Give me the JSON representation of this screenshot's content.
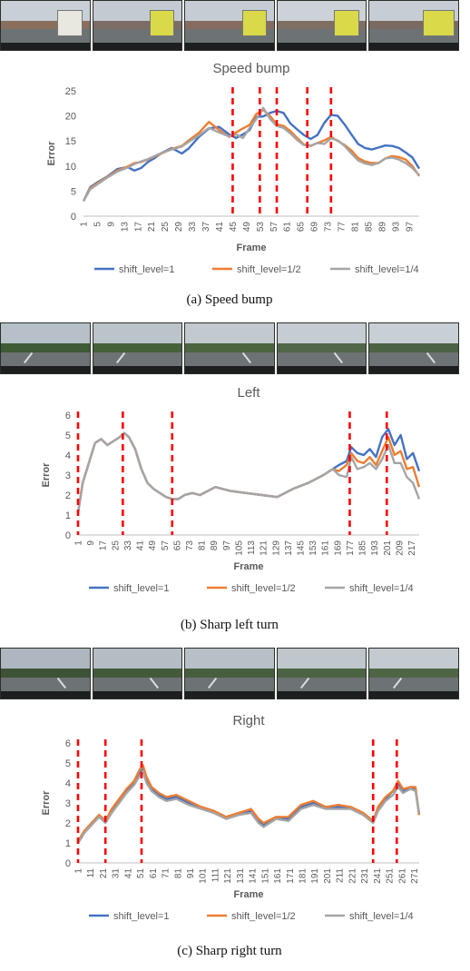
{
  "panels": [
    {
      "caption": "(a) Speed bump",
      "hud": [
        "",
        "",
        "",
        "",
        ""
      ]
    },
    {
      "caption": "(b) Sharp left turn",
      "hud": [
        "",
        "",
        "",
        "",
        ""
      ]
    },
    {
      "caption": "(c) Sharp right turn",
      "hud": [
        "",
        "",
        "",
        "",
        ""
      ]
    }
  ],
  "colors": {
    "shift_1": "#4472c4",
    "shift_half": "#ed7d31",
    "shift_quarter": "#a5a5a5",
    "marker": "#ff0000"
  },
  "chart_data": [
    {
      "type": "line",
      "title": "Speed bump",
      "xlabel": "Frame",
      "ylabel": "Error",
      "ylim": [
        0,
        25
      ],
      "yticks": [
        0,
        5,
        10,
        15,
        20,
        25
      ],
      "xlim": [
        1,
        100
      ],
      "xticks": [
        1,
        5,
        9,
        13,
        17,
        21,
        25,
        29,
        33,
        37,
        41,
        45,
        49,
        53,
        57,
        61,
        65,
        69,
        73,
        77,
        81,
        85,
        89,
        93,
        97
      ],
      "markers": [
        45,
        53,
        58,
        67,
        74
      ],
      "legend_position": "bottom",
      "series": [
        {
          "name": "shift_level=1",
          "x": [
            1,
            3,
            5,
            8,
            11,
            14,
            16,
            18,
            20,
            22,
            24,
            27,
            30,
            32,
            35,
            38,
            41,
            44,
            46,
            48,
            50,
            52,
            54,
            56,
            58,
            60,
            62,
            64,
            66,
            68,
            70,
            72,
            74,
            76,
            78,
            80,
            82,
            84,
            86,
            88,
            90,
            92,
            94,
            96,
            98,
            100
          ],
          "values": [
            3,
            5.8,
            6.7,
            7.9,
            9.4,
            9.8,
            9.1,
            9.6,
            10.8,
            11.6,
            12.6,
            13.6,
            12.5,
            13.5,
            15.8,
            17.5,
            17.8,
            16.3,
            15.6,
            16.3,
            17.2,
            19.8,
            19.9,
            20.6,
            21.0,
            20.6,
            18.5,
            17.3,
            16.2,
            15.4,
            16.2,
            18.6,
            20.2,
            20.0,
            18.3,
            16.3,
            14.4,
            13.6,
            13.3,
            13.7,
            14.1,
            14.0,
            13.6,
            12.7,
            11.7,
            9.5
          ]
        },
        {
          "name": "shift_level=1/2",
          "x": [
            1,
            3,
            5,
            8,
            11,
            14,
            16,
            18,
            20,
            22,
            24,
            27,
            30,
            32,
            35,
            38,
            41,
            44,
            46,
            48,
            50,
            52,
            54,
            56,
            58,
            60,
            62,
            64,
            66,
            68,
            70,
            72,
            74,
            76,
            78,
            80,
            82,
            84,
            86,
            88,
            90,
            92,
            94,
            96,
            98,
            100
          ],
          "values": [
            3,
            5.6,
            6.5,
            7.8,
            9.1,
            9.9,
            10.6,
            10.8,
            11.3,
            11.9,
            12.5,
            13.4,
            14.0,
            15.1,
            16.6,
            18.8,
            17.2,
            15.8,
            16.7,
            17.5,
            18.2,
            20.4,
            21.2,
            20.0,
            18.3,
            18.0,
            17.0,
            15.6,
            14.3,
            14.0,
            14.6,
            15.1,
            15.8,
            15.0,
            14.2,
            13.1,
            11.6,
            10.9,
            10.6,
            10.6,
            11.5,
            12.0,
            11.8,
            11.3,
            10.0,
            8.0
          ]
        },
        {
          "name": "shift_level=1/4",
          "x": [
            1,
            3,
            5,
            8,
            11,
            14,
            16,
            18,
            20,
            22,
            24,
            27,
            30,
            32,
            35,
            38,
            41,
            44,
            46,
            48,
            50,
            52,
            54,
            56,
            58,
            60,
            62,
            64,
            66,
            68,
            70,
            72,
            74,
            76,
            78,
            80,
            82,
            84,
            86,
            88,
            90,
            92,
            94,
            96,
            98,
            100
          ],
          "values": [
            3,
            5.4,
            6.3,
            7.7,
            8.9,
            9.7,
            10.4,
            10.9,
            11.4,
            12.0,
            12.6,
            13.3,
            13.9,
            14.8,
            16.1,
            17.6,
            16.7,
            15.9,
            16.3,
            15.6,
            17.6,
            19.4,
            21.6,
            19.4,
            18.0,
            17.6,
            16.5,
            15.2,
            14.2,
            14.1,
            14.6,
            14.4,
            15.5,
            15.1,
            14.0,
            12.5,
            11.1,
            10.5,
            10.2,
            10.6,
            11.5,
            11.7,
            11.3,
            10.6,
            9.6,
            8.2
          ]
        }
      ]
    },
    {
      "type": "line",
      "title": "Left",
      "xlabel": "Frame",
      "ylabel": "Error",
      "ylim": [
        0,
        6
      ],
      "yticks": [
        0,
        1,
        2,
        3,
        4,
        5,
        6
      ],
      "xlim": [
        1,
        222
      ],
      "xticks": [
        1,
        9,
        17,
        25,
        33,
        41,
        49,
        57,
        65,
        73,
        81,
        89,
        97,
        105,
        113,
        121,
        129,
        137,
        145,
        153,
        161,
        169,
        177,
        185,
        193,
        201,
        209,
        217
      ],
      "markers": [
        1,
        30,
        62,
        177,
        201
      ],
      "legend_position": "bottom",
      "series": [
        {
          "name": "shift_level=1",
          "x": [
            1,
            4,
            8,
            12,
            16,
            20,
            24,
            28,
            31,
            34,
            38,
            42,
            46,
            50,
            54,
            58,
            62,
            66,
            70,
            75,
            80,
            90,
            100,
            110,
            120,
            130,
            140,
            150,
            160,
            166,
            170,
            175,
            178,
            182,
            186,
            190,
            194,
            198,
            202,
            206,
            210,
            214,
            218,
            222
          ],
          "values": [
            1.1,
            2.6,
            3.6,
            4.6,
            4.8,
            4.5,
            4.7,
            4.9,
            5.1,
            4.9,
            4.3,
            3.3,
            2.6,
            2.3,
            2.1,
            1.9,
            1.8,
            1.8,
            2.0,
            2.1,
            2.0,
            2.4,
            2.2,
            2.1,
            2.0,
            1.9,
            2.3,
            2.6,
            3.0,
            3.3,
            3.5,
            3.7,
            4.4,
            4.1,
            4.0,
            4.3,
            3.9,
            4.9,
            5.3,
            4.5,
            5.0,
            3.8,
            4.1,
            3.2
          ]
        },
        {
          "name": "shift_level=1/2",
          "x": [
            1,
            4,
            8,
            12,
            16,
            20,
            24,
            28,
            31,
            34,
            38,
            42,
            46,
            50,
            54,
            58,
            62,
            66,
            70,
            75,
            80,
            90,
            100,
            110,
            120,
            130,
            140,
            150,
            160,
            166,
            170,
            175,
            178,
            182,
            186,
            190,
            194,
            198,
            202,
            206,
            210,
            214,
            218,
            222
          ],
          "values": [
            1.1,
            2.6,
            3.6,
            4.6,
            4.8,
            4.5,
            4.7,
            4.9,
            5.1,
            4.9,
            4.3,
            3.3,
            2.6,
            2.3,
            2.1,
            1.9,
            1.8,
            1.8,
            2.0,
            2.1,
            2.0,
            2.4,
            2.2,
            2.1,
            2.0,
            1.9,
            2.3,
            2.6,
            3.0,
            3.3,
            3.2,
            3.5,
            4.1,
            3.7,
            3.6,
            3.9,
            3.5,
            4.2,
            4.9,
            4.0,
            4.2,
            3.3,
            3.4,
            2.4
          ]
        },
        {
          "name": "shift_level=1/4",
          "x": [
            1,
            4,
            8,
            12,
            16,
            20,
            24,
            28,
            31,
            34,
            38,
            42,
            46,
            50,
            54,
            58,
            62,
            66,
            70,
            75,
            80,
            90,
            100,
            110,
            120,
            130,
            140,
            150,
            160,
            166,
            170,
            175,
            178,
            182,
            186,
            190,
            194,
            198,
            202,
            206,
            210,
            214,
            218,
            222
          ],
          "values": [
            1.1,
            2.6,
            3.6,
            4.6,
            4.8,
            4.5,
            4.7,
            4.9,
            5.1,
            4.9,
            4.3,
            3.3,
            2.6,
            2.3,
            2.1,
            1.9,
            1.8,
            1.8,
            2.0,
            2.1,
            2.0,
            2.4,
            2.2,
            2.1,
            2.0,
            1.9,
            2.3,
            2.6,
            3.0,
            3.3,
            3.0,
            2.9,
            3.9,
            3.3,
            3.4,
            3.6,
            3.3,
            3.8,
            4.5,
            3.6,
            3.6,
            2.9,
            2.6,
            1.8
          ]
        }
      ]
    },
    {
      "type": "line",
      "title": "Right",
      "xlabel": "Frame",
      "ylabel": "Error",
      "ylim": [
        0,
        6
      ],
      "yticks": [
        0,
        1,
        2,
        3,
        4,
        5,
        6
      ],
      "xlim": [
        1,
        275
      ],
      "xticks": [
        1,
        11,
        21,
        31,
        41,
        51,
        61,
        71,
        81,
        91,
        101,
        111,
        121,
        131,
        141,
        151,
        161,
        171,
        181,
        191,
        201,
        211,
        221,
        231,
        241,
        251,
        261,
        271
      ],
      "markers": [
        1,
        23,
        52,
        238,
        257
      ],
      "legend_position": "bottom",
      "series": [
        {
          "name": "shift_level=1",
          "x": [
            1,
            6,
            12,
            18,
            23,
            28,
            34,
            40,
            46,
            50,
            53,
            56,
            60,
            66,
            72,
            80,
            90,
            100,
            110,
            120,
            130,
            140,
            146,
            150,
            160,
            170,
            180,
            190,
            200,
            210,
            220,
            230,
            238,
            242,
            248,
            254,
            258,
            262,
            268,
            272,
            275
          ],
          "values": [
            1.0,
            1.5,
            2.0,
            2.4,
            2.1,
            2.6,
            3.1,
            3.6,
            4.0,
            4.5,
            4.7,
            4.1,
            3.7,
            3.4,
            3.2,
            3.3,
            3.0,
            2.8,
            2.6,
            2.3,
            2.5,
            2.6,
            2.1,
            1.9,
            2.3,
            2.2,
            2.8,
            3.0,
            2.8,
            2.8,
            2.8,
            2.5,
            2.1,
            2.7,
            3.2,
            3.6,
            4.0,
            3.6,
            3.8,
            3.7,
            2.4
          ]
        },
        {
          "name": "shift_level=1/2",
          "x": [
            1,
            6,
            12,
            18,
            23,
            28,
            34,
            40,
            46,
            50,
            53,
            56,
            60,
            66,
            72,
            80,
            90,
            100,
            110,
            120,
            130,
            140,
            146,
            150,
            160,
            170,
            180,
            190,
            200,
            210,
            220,
            230,
            238,
            242,
            248,
            254,
            258,
            262,
            268,
            272,
            275
          ],
          "values": [
            1.1,
            1.6,
            2.0,
            2.4,
            2.1,
            2.7,
            3.2,
            3.7,
            4.1,
            4.6,
            4.9,
            4.3,
            3.8,
            3.5,
            3.3,
            3.4,
            3.1,
            2.8,
            2.6,
            2.3,
            2.5,
            2.7,
            2.2,
            2.0,
            2.3,
            2.3,
            2.9,
            3.1,
            2.8,
            2.9,
            2.8,
            2.5,
            2.1,
            2.8,
            3.3,
            3.6,
            4.1,
            3.7,
            3.8,
            3.8,
            2.4
          ]
        },
        {
          "name": "shift_level=1/4",
          "x": [
            1,
            6,
            12,
            18,
            23,
            28,
            34,
            40,
            46,
            50,
            53,
            56,
            60,
            66,
            72,
            80,
            90,
            100,
            110,
            120,
            130,
            140,
            146,
            150,
            160,
            170,
            180,
            190,
            200,
            210,
            220,
            230,
            238,
            242,
            248,
            254,
            258,
            262,
            268,
            272,
            275
          ],
          "values": [
            1.0,
            1.5,
            1.9,
            2.3,
            2.0,
            2.5,
            3.0,
            3.5,
            3.9,
            4.3,
            4.6,
            4.0,
            3.6,
            3.3,
            3.1,
            3.2,
            2.9,
            2.7,
            2.5,
            2.2,
            2.4,
            2.5,
            2.0,
            1.8,
            2.2,
            2.1,
            2.7,
            2.9,
            2.7,
            2.7,
            2.7,
            2.4,
            2.0,
            2.6,
            3.1,
            3.4,
            3.8,
            3.5,
            3.7,
            3.6,
            2.5
          ]
        }
      ]
    }
  ]
}
